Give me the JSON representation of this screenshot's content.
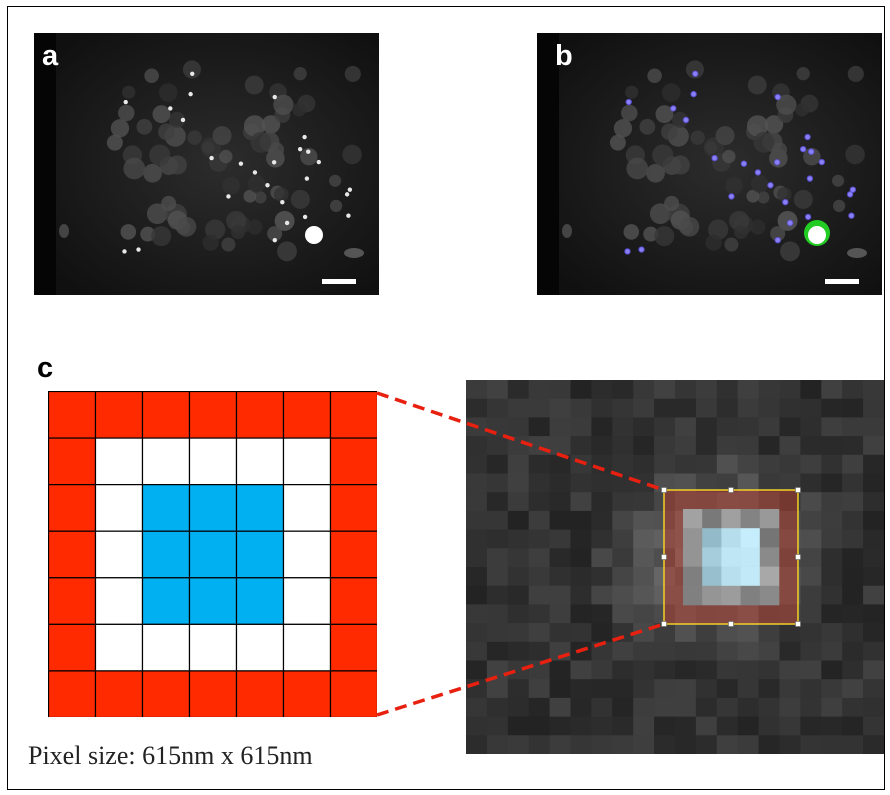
{
  "panels": {
    "a": {
      "label": "a"
    },
    "b": {
      "label": "b"
    },
    "c": {
      "label": "c"
    }
  },
  "caption": "Pixel size: 615nm x 615nm",
  "grid": {
    "rows": 7,
    "cols": 7,
    "zones": [
      [
        "red",
        "red",
        "red",
        "red",
        "red",
        "red",
        "red"
      ],
      [
        "red",
        "white",
        "white",
        "white",
        "white",
        "white",
        "red"
      ],
      [
        "red",
        "white",
        "blue",
        "blue",
        "blue",
        "white",
        "red"
      ],
      [
        "red",
        "white",
        "blue",
        "blue",
        "blue",
        "white",
        "red"
      ],
      [
        "red",
        "white",
        "blue",
        "blue",
        "blue",
        "white",
        "red"
      ],
      [
        "red",
        "white",
        "white",
        "white",
        "white",
        "white",
        "red"
      ],
      [
        "red",
        "red",
        "red",
        "red",
        "red",
        "red",
        "red"
      ]
    ]
  },
  "colors": {
    "red": "#ff2a00",
    "white": "#ffffff",
    "blue": "#00b0f0",
    "gridline": "#000000",
    "connector": "#e82010",
    "roi_box": "#f2d12a",
    "highlight_green": "#22cc22",
    "highlight_blue": "#6a5cff"
  }
}
